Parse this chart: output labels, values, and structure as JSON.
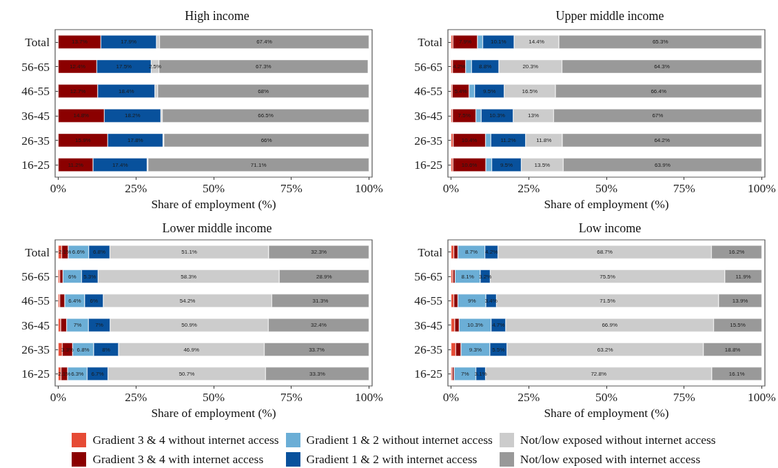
{
  "chart_data": [
    {
      "type": "bar",
      "orientation": "horizontal",
      "stacked": true,
      "title": "High income",
      "xlabel": "Share of employment (%)",
      "categories": [
        "Total",
        "56-65",
        "46-55",
        "36-45",
        "26-35",
        "16-25"
      ],
      "xlim": [
        -1,
        101
      ],
      "xticks": [
        {
          "value": 0,
          "label": "0%"
        },
        {
          "value": 25,
          "label": "25%"
        },
        {
          "value": 50,
          "label": "50%"
        },
        {
          "value": 75,
          "label": "75%"
        },
        {
          "value": 100,
          "label": "100%"
        }
      ],
      "legend": "bottom",
      "series": [
        {
          "name": "Gradient 3 & 4 with internet access",
          "color": "#8b0000",
          "values": [
            13.7,
            12.4,
            12.7,
            14.8,
            15.9,
            11.2
          ],
          "value_labels": [
            "13.7%",
            "12.4%",
            "12.7%",
            "14.8%",
            "15.9%",
            "11.2%"
          ]
        },
        {
          "name": "Gradient 1 & 2 with internet access",
          "color": "#08519c",
          "values": [
            17.9,
            17.5,
            18.4,
            18.2,
            17.8,
            17.4
          ],
          "value_labels": [
            "17.9%",
            "17.5%",
            "18.4%",
            "18.2%",
            "17.8%",
            "17.4%"
          ]
        },
        {
          "name": "Not/low exposed without internet access",
          "color": "#cccccc",
          "values": [
            1.0,
            2.5,
            0.9,
            0.5,
            0.3,
            0.3
          ],
          "value_labels": [
            null,
            "2.5%",
            null,
            null,
            null,
            null
          ]
        },
        {
          "name": "Not/low exposed with internet access",
          "color": "#999999",
          "values": [
            67.4,
            67.3,
            68,
            66.5,
            66,
            71.1
          ],
          "value_labels": [
            "67.4%",
            "67.3%",
            "68%",
            "66.5%",
            "66%",
            "71.1%"
          ]
        }
      ]
    },
    {
      "type": "bar",
      "orientation": "horizontal",
      "stacked": true,
      "title": "Upper middle income",
      "xlabel": "Share of employment (%)",
      "categories": [
        "Total",
        "56-65",
        "46-55",
        "36-45",
        "26-35",
        "16-25"
      ],
      "xlim": [
        -1,
        101
      ],
      "xticks": [
        {
          "value": 0,
          "label": "0%"
        },
        {
          "value": 25,
          "label": "25%"
        },
        {
          "value": 50,
          "label": "50%"
        },
        {
          "value": 75,
          "label": "75%"
        },
        {
          "value": 100,
          "label": "100%"
        }
      ],
      "legend": "bottom",
      "series": [
        {
          "name": "Gradient 3 & 4 without internet access",
          "color": "#e64b35",
          "values": [
            0.6,
            0.5,
            0.4,
            0.5,
            0.7,
            0.6
          ]
        },
        {
          "name": "Gradient 3 & 4 with internet access",
          "color": "#8b0000",
          "values": [
            7.9,
            4.2,
            5.4,
            7.5,
            10.4,
            10.6
          ],
          "value_labels": [
            "7.9%",
            "4.2%",
            "5.4%",
            "7.5%",
            "10.4%",
            "10.6%"
          ]
        },
        {
          "name": "Gradient 1 & 2 without internet access",
          "color": "#6baed6",
          "values": [
            1.7,
            1.9,
            1.8,
            1.7,
            1.7,
            1.9
          ]
        },
        {
          "name": "Gradient 1 & 2 with internet access",
          "color": "#08519c",
          "values": [
            10.1,
            8.8,
            9.5,
            10.3,
            11.2,
            9.5
          ],
          "value_labels": [
            "10.1%",
            "8.8%",
            "9.5%",
            "10.3%",
            "11.2%",
            "9.5%"
          ]
        },
        {
          "name": "Not/low exposed without internet access",
          "color": "#cccccc",
          "values": [
            14.4,
            20.3,
            16.5,
            13,
            11.8,
            13.5
          ],
          "value_labels": [
            "14.4%",
            "20.3%",
            "16.5%",
            "13%",
            "11.8%",
            "13.5%"
          ]
        },
        {
          "name": "Not/low exposed with internet access",
          "color": "#999999",
          "values": [
            65.3,
            64.3,
            66.4,
            67,
            64.2,
            63.9
          ],
          "value_labels": [
            "65.3%",
            "64.3%",
            "66.4%",
            "67%",
            "64.2%",
            "63.9%"
          ]
        }
      ]
    },
    {
      "type": "bar",
      "orientation": "horizontal",
      "stacked": true,
      "title": "Lower middle income",
      "xlabel": "Share of employment (%)",
      "categories": [
        "Total",
        "56-65",
        "46-55",
        "36-45",
        "26-35",
        "16-25"
      ],
      "xlim": [
        -1,
        101
      ],
      "xticks": [
        {
          "value": 0,
          "label": "0%"
        },
        {
          "value": 25,
          "label": "25%"
        },
        {
          "value": 50,
          "label": "50%"
        },
        {
          "value": 75,
          "label": "75%"
        },
        {
          "value": 100,
          "label": "100%"
        }
      ],
      "legend": "bottom",
      "series": [
        {
          "name": "Gradient 3 & 4 without internet access",
          "color": "#e64b35",
          "values": [
            1.1,
            0.5,
            0.5,
            0.8,
            1.3,
            0.9
          ]
        },
        {
          "name": "Gradient 3 & 4 with internet access",
          "color": "#8b0000",
          "values": [
            2.1,
            1.0,
            1.6,
            1.9,
            3.3,
            2.1
          ],
          "value_labels": [
            "2.1%",
            null,
            null,
            null,
            "3.3%",
            "2.1%"
          ]
        },
        {
          "name": "Gradient 1 & 2 without internet access",
          "color": "#6baed6",
          "values": [
            6.6,
            6,
            6.4,
            7,
            6.8,
            6.3
          ],
          "value_labels": [
            "6.6%",
            "6%",
            "6.4%",
            "7%",
            "6.8%",
            "6.3%"
          ]
        },
        {
          "name": "Gradient 1 & 2 with internet access",
          "color": "#08519c",
          "values": [
            6.8,
            5.3,
            6,
            7,
            8,
            6.7
          ],
          "value_labels": [
            "6.8%",
            "5.3%",
            "6%",
            "7%",
            "8%",
            "6.7%"
          ]
        },
        {
          "name": "Not/low exposed without internet access",
          "color": "#cccccc",
          "values": [
            51.1,
            58.3,
            54.2,
            50.9,
            46.9,
            50.7
          ],
          "value_labels": [
            "51.1%",
            "58.3%",
            "54.2%",
            "50.9%",
            "46.9%",
            "50.7%"
          ]
        },
        {
          "name": "Not/low exposed with internet access",
          "color": "#999999",
          "values": [
            32.3,
            28.9,
            31.3,
            32.4,
            33.7,
            33.3
          ],
          "value_labels": [
            "32.3%",
            "28.9%",
            "31.3%",
            "32.4%",
            "33.7%",
            "33.3%"
          ]
        }
      ]
    },
    {
      "type": "bar",
      "orientation": "horizontal",
      "stacked": true,
      "title": "Low income",
      "xlabel": "Share of employment (%)",
      "categories": [
        "Total",
        "56-65",
        "46-55",
        "36-45",
        "26-35",
        "16-25"
      ],
      "xlim": [
        -1,
        101
      ],
      "xticks": [
        {
          "value": 0,
          "label": "0%"
        },
        {
          "value": 25,
          "label": "25%"
        },
        {
          "value": 50,
          "label": "50%"
        },
        {
          "value": 75,
          "label": "75%"
        },
        {
          "value": 100,
          "label": "100%"
        }
      ],
      "legend": "bottom",
      "series": [
        {
          "name": "Gradient 3 & 4 without internet access",
          "color": "#e64b35",
          "values": [
            0.9,
            0.6,
            0.9,
            1.2,
            1.5,
            0.4
          ]
        },
        {
          "name": "Gradient 3 & 4 with internet access",
          "color": "#8b0000",
          "values": [
            1.3,
            0.7,
            1.3,
            1.4,
            1.7,
            0.6
          ]
        },
        {
          "name": "Gradient 1 & 2 without internet access",
          "color": "#6baed6",
          "values": [
            8.7,
            8.1,
            9,
            10.3,
            9.3,
            7
          ],
          "value_labels": [
            "8.7%",
            "8.1%",
            "9%",
            "10.3%",
            "9.3%",
            "7%"
          ]
        },
        {
          "name": "Gradient 1 & 2 with internet access",
          "color": "#08519c",
          "values": [
            4.2,
            3.2,
            3.4,
            4.7,
            5.5,
            3.1
          ],
          "value_labels": [
            "4.2%",
            "3.2%",
            "3.4%",
            "4.7%",
            "5.5%",
            "3.1%"
          ]
        },
        {
          "name": "Not/low exposed without internet access",
          "color": "#cccccc",
          "values": [
            68.7,
            75.5,
            71.5,
            66.9,
            63.2,
            72.8
          ],
          "value_labels": [
            "68.7%",
            "75.5%",
            "71.5%",
            "66.9%",
            "63.2%",
            "72.8%"
          ]
        },
        {
          "name": "Not/low exposed with internet access",
          "color": "#999999",
          "values": [
            16.2,
            11.9,
            13.9,
            15.5,
            18.8,
            16.1
          ],
          "value_labels": [
            "16.2%",
            "11.9%",
            "13.9%",
            "15.5%",
            "18.8%",
            "16.1%"
          ]
        }
      ]
    }
  ]
}
